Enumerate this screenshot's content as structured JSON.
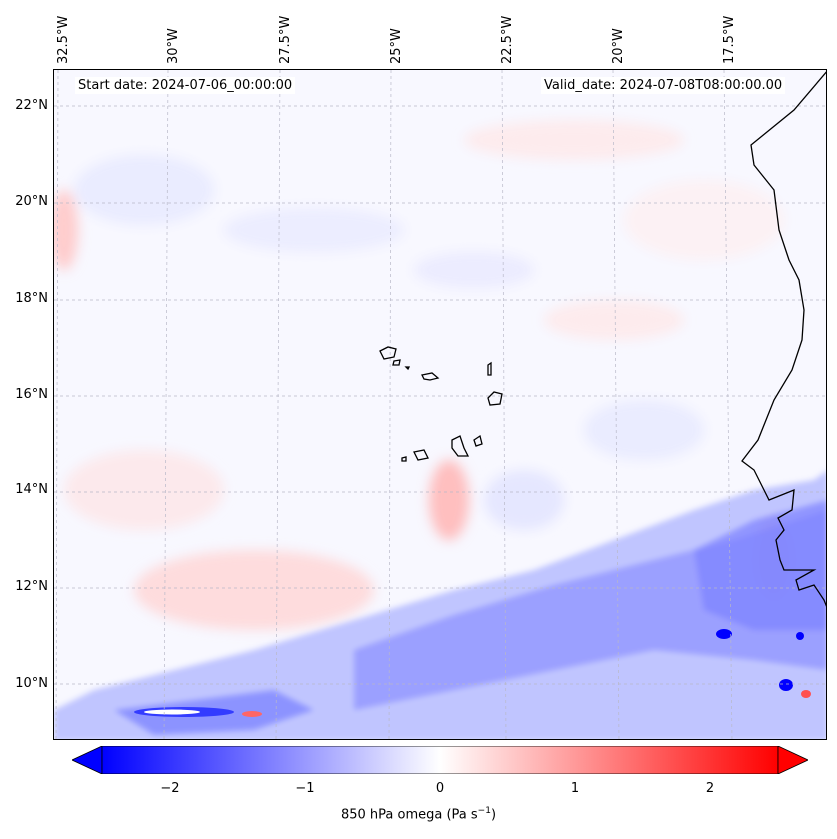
{
  "map": {
    "start_date": "Start date: 2024-07-06_00:00:00",
    "valid_date": "Valid_date: 2024-07-08T08:00:00.00",
    "lon_labels": [
      "32.5°W",
      "30°W",
      "27.5°W",
      "25°W",
      "22.5°W",
      "20°W",
      "17.5°W"
    ],
    "lat_labels": [
      "22°N",
      "20°N",
      "18°N",
      "16°N",
      "14°N",
      "12°N",
      "10°N"
    ],
    "field": "850 hPa omega",
    "units": "Pa s⁻¹",
    "colormap": "bwr",
    "colors": {
      "negative": "#0000ff",
      "zero": "#ffffff",
      "positive": "#ff0000",
      "coastline": "#000000",
      "grid": "#b0b0b0"
    }
  },
  "colorbar": {
    "min": -2.5,
    "max": 2.5,
    "extend": "both",
    "tick_values": [
      -2,
      -1,
      0,
      1,
      2
    ],
    "tick_labels": [
      "−2",
      "−1",
      "0",
      "1",
      "2"
    ],
    "label_text": "850 hPa omega (Pa s",
    "label_exp": "−1",
    "label_close": ")"
  }
}
